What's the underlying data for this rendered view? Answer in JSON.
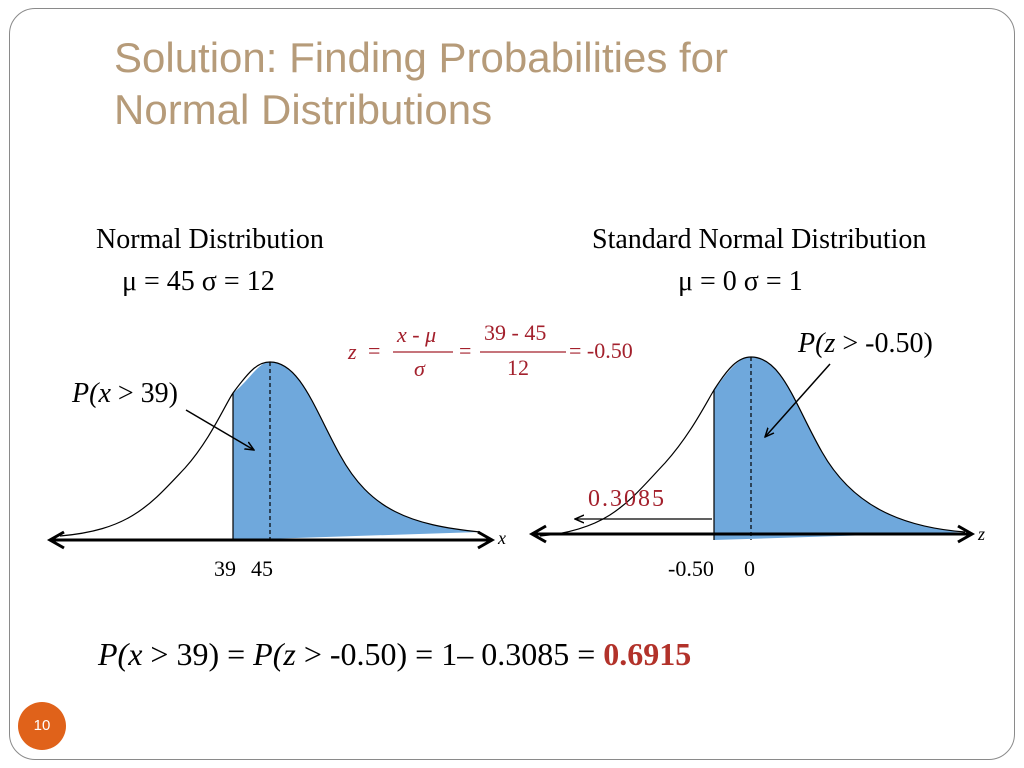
{
  "slide": {
    "title_line1": "Solution:  Finding Probabilities for",
    "title_line2": "Normal Distributions",
    "page_number": "10"
  },
  "left_panel": {
    "heading": "Normal Distribution",
    "params": "μ = 45  σ = 12",
    "prob_label_prefix": "P(",
    "prob_label_var": "x",
    "prob_label_rest": " > 39)",
    "axis_var": "x",
    "tick_39": "39",
    "tick_45": "45"
  },
  "right_panel": {
    "heading": "Standard Normal Distribution",
    "params": "μ = 0  σ = 1",
    "prob_label_prefix": "P(",
    "prob_label_var": "z",
    "prob_label_rest": " > -0.50)",
    "axis_var": "z",
    "tick_neg050": "-0.50",
    "tick_0": "0",
    "area_value": "0.3085"
  },
  "z_formula": {
    "z": "z",
    "eq1": "=",
    "num1": "x - μ",
    "den1": "σ",
    "eq2": "=",
    "num2": "39 - 45",
    "den2": "12",
    "eq3": "= -0.50"
  },
  "bottom_equation": {
    "p1": "P(",
    "v1": "x",
    "r1": " > 39) = ",
    "p2": "P(",
    "v2": "z",
    "r2": " > -0.50) = 1– 0.3085 = ",
    "answer": "0.6915"
  },
  "colors": {
    "fill": "#6fa8dc",
    "title": "#b69b79",
    "formula": "#a3202c",
    "answer": "#b2322a",
    "badge": "#e0621a"
  }
}
